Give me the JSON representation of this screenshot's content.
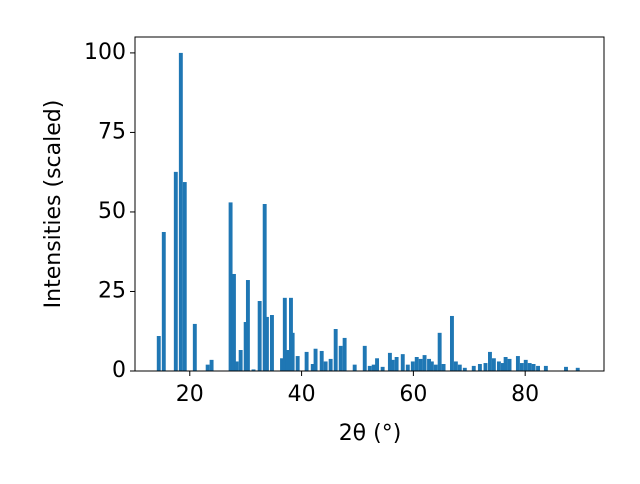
{
  "chart_data": {
    "type": "bar",
    "x_label": "2θ (°)",
    "y_label": "Intensities (scaled)",
    "x": [
      14.45,
      15.35,
      17.5,
      18.4,
      19.1,
      20.9,
      23.2,
      23.9,
      27.3,
      27.9,
      28.4,
      29.1,
      30.0,
      30.4,
      31.4,
      32.5,
      33.4,
      33.8,
      34.7,
      36.5,
      37.0,
      37.4,
      38.1,
      38.4,
      39.3,
      40.9,
      42.0,
      42.5,
      43.6,
      44.3,
      45.2,
      46.1,
      47.0,
      47.7,
      49.5,
      51.3,
      52.2,
      52.9,
      53.5,
      54.5,
      55.8,
      56.3,
      57.0,
      58.1,
      59.0,
      59.9,
      60.6,
      61.3,
      62.0,
      62.8,
      63.3,
      64.0,
      64.7,
      65.4,
      66.9,
      67.6,
      68.3,
      69.2,
      70.8,
      71.9,
      72.9,
      73.7,
      74.4,
      75.3,
      76.0,
      76.5,
      77.2,
      78.7,
      79.4,
      80.1,
      80.8,
      81.5,
      82.3,
      83.7,
      87.3,
      89.4
    ],
    "values": [
      11,
      43.7,
      62.6,
      100,
      59.4,
      14.8,
      2,
      3.5,
      53,
      30.5,
      3,
      6.6,
      15.4,
      28.6,
      0.5,
      22,
      52.5,
      17,
      17.6,
      4,
      23,
      6.6,
      23,
      12,
      4.7,
      6,
      2.2,
      7,
      6.3,
      3,
      3.8,
      13.2,
      7.9,
      10.4,
      2,
      7.9,
      1.6,
      2,
      4,
      1.3,
      5.7,
      3.5,
      4.4,
      5.3,
      2,
      3,
      4.4,
      3.8,
      5,
      3.8,
      3,
      2,
      12,
      2.2,
      17.3,
      3,
      2,
      1,
      1.6,
      2.2,
      2.5,
      6,
      4,
      3,
      2.5,
      4.4,
      3.8,
      4.7,
      2.5,
      3.5,
      2.5,
      2.2,
      1.6,
      1.6,
      1.3,
      1
    ],
    "color": "#1f77b4",
    "xlim": [
      10.2,
      94.1
    ],
    "xticks": [
      20,
      40,
      60,
      80
    ],
    "ylim": [
      0,
      105
    ],
    "yticks": [
      0,
      25,
      50,
      75,
      100
    ]
  }
}
